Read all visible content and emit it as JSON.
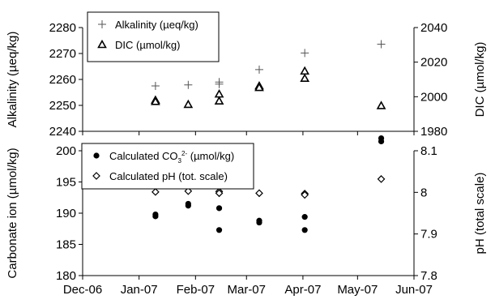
{
  "chart_data": [
    {
      "type": "scatter",
      "ylabel": "Alkalinity (µeq/kg)",
      "y2label": "DIC (µmol/kg)",
      "ylim": [
        2240,
        2280
      ],
      "yticks": [
        2240,
        2250,
        2260,
        2270,
        2280
      ],
      "y2lim": [
        1980,
        2040
      ],
      "y2ticks": [
        1980,
        2000,
        2020,
        2040
      ],
      "grid": false,
      "legend_position": "top-left",
      "series": [
        {
          "name": "Alkalinity (µeq/kg)",
          "marker": "plus",
          "axis": "left",
          "points": [
            {
              "x": "2007-01-10",
              "y": 2257.5
            },
            {
              "x": "2007-01-28",
              "y": 2257.9
            },
            {
              "x": "2007-02-14",
              "y": 2258.2
            },
            {
              "x": "2007-02-14",
              "y": 2259.0
            },
            {
              "x": "2007-03-08",
              "y": 2263.8
            },
            {
              "x": "2007-04-02",
              "y": 2270.2
            },
            {
              "x": "2007-05-14",
              "y": 2273.6
            }
          ]
        },
        {
          "name": "DIC (µmol/kg)",
          "marker": "triangle-open",
          "axis": "right",
          "points": [
            {
              "x": "2007-01-10",
              "y": 1998.0
            },
            {
              "x": "2007-01-10",
              "y": 1997.2
            },
            {
              "x": "2007-01-28",
              "y": 1995.5
            },
            {
              "x": "2007-02-14",
              "y": 2001.5
            },
            {
              "x": "2007-02-14",
              "y": 1997.5
            },
            {
              "x": "2007-03-08",
              "y": 2006.2
            },
            {
              "x": "2007-03-08",
              "y": 2005.3
            },
            {
              "x": "2007-04-02",
              "y": 2014.8
            },
            {
              "x": "2007-04-02",
              "y": 2010.6
            },
            {
              "x": "2007-05-14",
              "y": 1994.8
            }
          ]
        }
      ]
    },
    {
      "type": "scatter",
      "ylabel": "Carbonate ion (µmol/kg)",
      "y2label": "pH (total scale)",
      "ylim": [
        180,
        200
      ],
      "yticks": [
        180,
        185,
        190,
        195,
        200
      ],
      "y2lim": [
        7.8,
        8.1
      ],
      "y2ticks": [
        7.8,
        7.9,
        8.0,
        8.1
      ],
      "y2ticklabels": [
        "7.8",
        "7.9",
        "8",
        "8.1"
      ],
      "xlabels": [
        "Dec-06",
        "Jan-07",
        "Feb-07",
        "Mar-07",
        "Apr-07",
        "May-07",
        "Jun-07"
      ],
      "xticks": [
        "2006-12-01",
        "2007-01-01",
        "2007-02-01",
        "2007-03-01",
        "2007-04-01",
        "2007-05-01",
        "2007-06-01"
      ],
      "grid": false,
      "legend_position": "top-left",
      "series": [
        {
          "name_main": "Calculated CO",
          "name_sub": "3",
          "name_sup": "2-",
          "name_tail": " (µmol/kg)",
          "marker": "circle-filled",
          "axis": "left",
          "points": [
            {
              "x": "2007-01-10",
              "y": 189.8
            },
            {
              "x": "2007-01-10",
              "y": 189.5
            },
            {
              "x": "2007-01-28",
              "y": 191.5
            },
            {
              "x": "2007-01-28",
              "y": 191.2
            },
            {
              "x": "2007-02-14",
              "y": 190.8
            },
            {
              "x": "2007-02-14",
              "y": 187.3
            },
            {
              "x": "2007-03-08",
              "y": 188.8
            },
            {
              "x": "2007-03-08",
              "y": 188.5
            },
            {
              "x": "2007-04-02",
              "y": 189.4
            },
            {
              "x": "2007-04-02",
              "y": 187.3
            },
            {
              "x": "2007-05-14",
              "y": 202.0
            },
            {
              "x": "2007-05-14",
              "y": 201.5
            }
          ]
        },
        {
          "name": "Calculated pH (tot. scale)",
          "marker": "diamond-open",
          "axis": "right",
          "points": [
            {
              "x": "2007-01-10",
              "y": 8.001
            },
            {
              "x": "2007-01-28",
              "y": 8.003
            },
            {
              "x": "2007-02-14",
              "y": 8.002
            },
            {
              "x": "2007-02-14",
              "y": 7.998
            },
            {
              "x": "2007-03-08",
              "y": 7.998
            },
            {
              "x": "2007-04-02",
              "y": 7.997
            },
            {
              "x": "2007-04-02",
              "y": 7.994
            },
            {
              "x": "2007-05-14",
              "y": 8.032
            }
          ]
        }
      ]
    }
  ]
}
